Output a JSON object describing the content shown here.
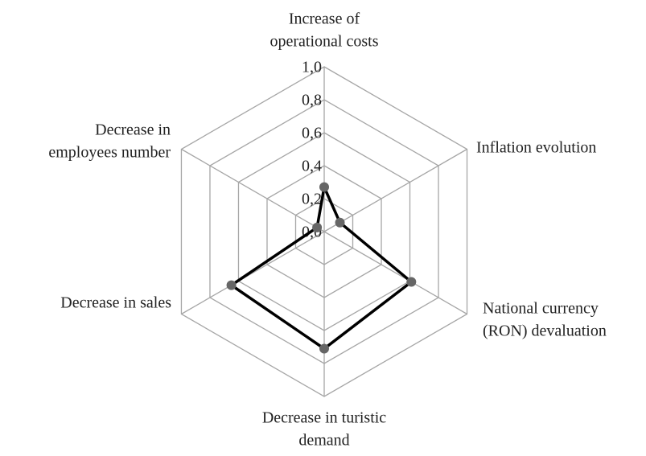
{
  "chart_data": {
    "type": "radar",
    "categories": [
      [
        "Increase of",
        "operational costs"
      ],
      [
        "Inflation evolution"
      ],
      [
        "National currency",
        "(RON) devaluation"
      ],
      [
        "Decrease in turistic",
        "demand"
      ],
      [
        "Decrease in sales"
      ],
      [
        "Decrease in",
        "employees number"
      ]
    ],
    "series": [
      {
        "color": "#000000",
        "marker_color": "#666666",
        "values": [
          0.27,
          0.11,
          0.61,
          0.71,
          0.65,
          0.05
        ]
      }
    ],
    "rlim": [
      0,
      1
    ],
    "rticks": [
      {
        "value": 0,
        "label": "0,0"
      },
      {
        "value": 0.2,
        "label": "0,2"
      },
      {
        "value": 0.4,
        "label": "0,4"
      },
      {
        "value": 0.6,
        "label": "0,6"
      },
      {
        "value": 0.8,
        "label": "0,8"
      },
      {
        "value": 1,
        "label": "1,0"
      }
    ],
    "grid": true
  }
}
